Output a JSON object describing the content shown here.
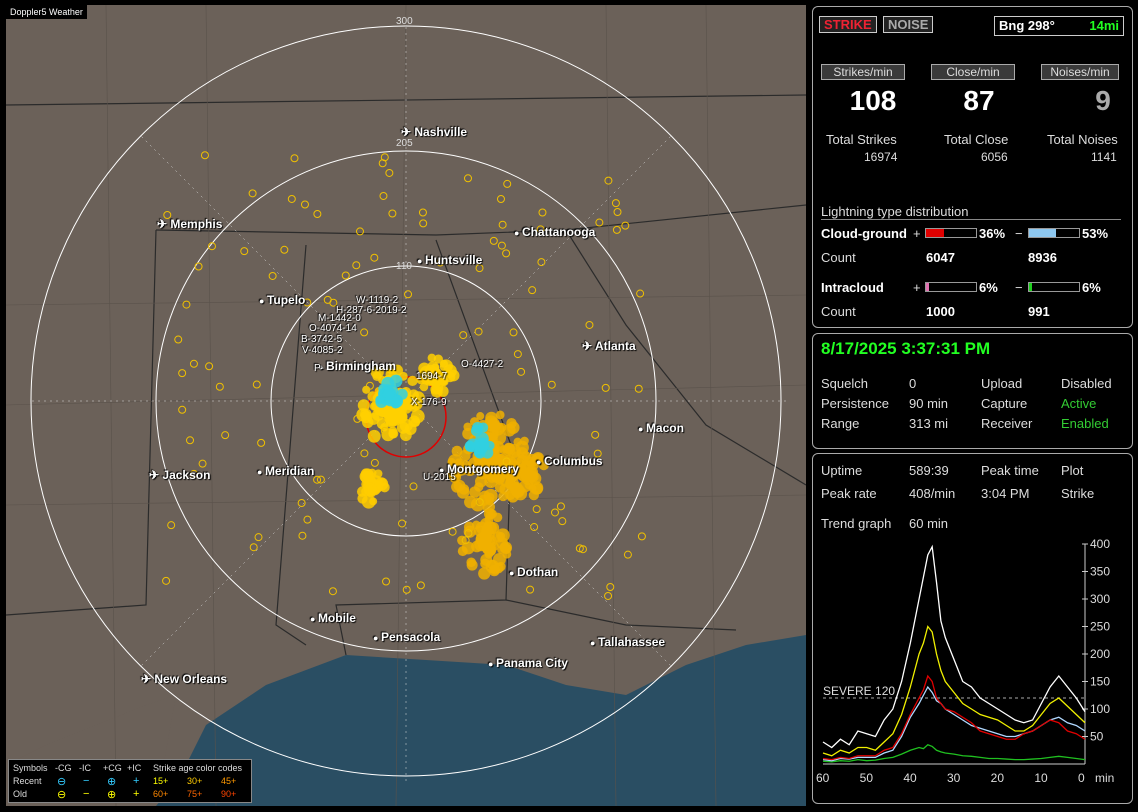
{
  "map": {
    "title": "Doppler5 Weather",
    "ring_labels": [
      "300",
      "205",
      "110"
    ],
    "cities": [
      {
        "name": "Nashville",
        "airport": true
      },
      {
        "name": "Memphis",
        "airport": true
      },
      {
        "name": "Chattanooga",
        "airport": false
      },
      {
        "name": "Huntsville",
        "airport": false
      },
      {
        "name": "Tupelo",
        "airport": false
      },
      {
        "name": "Atlanta",
        "airport": true
      },
      {
        "name": "Birmingham",
        "airport": false
      },
      {
        "name": "Macon",
        "airport": false
      },
      {
        "name": "Jackson",
        "airport": true
      },
      {
        "name": "Meridian",
        "airport": false
      },
      {
        "name": "Montgomery",
        "airport": false
      },
      {
        "name": "Columbus",
        "airport": false
      },
      {
        "name": "Dothan",
        "airport": false
      },
      {
        "name": "Mobile",
        "airport": false
      },
      {
        "name": "Pensacola",
        "airport": false
      },
      {
        "name": "Tallahassee",
        "airport": false
      },
      {
        "name": "Panama City",
        "airport": false
      },
      {
        "name": "New Orleans",
        "airport": true
      }
    ],
    "storm_labels": [
      "W-1119-2",
      "H-287-6-2019-2",
      "M-1442-0",
      "O-4074-14",
      "B-3742-5",
      "V-4085-2",
      "P-",
      "O-4427-2",
      "1694-7",
      "X-176-9",
      "U-2015"
    ],
    "legend": {
      "symbols_label": "Symbols",
      "recent_label": "Recent",
      "old_label": "Old",
      "cols": [
        "-CG",
        "-IC",
        "+CG",
        "+IC"
      ],
      "recent_symbols": [
        "⊖",
        "−",
        "⊕",
        "+"
      ],
      "old_symbols": [
        "⊖",
        "−",
        "⊕",
        "+"
      ],
      "age_title": "Strike age color codes",
      "recent_ages": [
        "15+",
        "30+",
        "45+"
      ],
      "old_ages": [
        "60+",
        "75+",
        "90+"
      ]
    }
  },
  "top": {
    "strike_btn": "STRIKE",
    "noise_btn": "NOISE",
    "bearing": "Bng 298°",
    "distance": "14mi",
    "strikes_min_label": "Strikes/min",
    "close_min_label": "Close/min",
    "noises_min_label": "Noises/min",
    "strikes_min": "108",
    "close_min": "87",
    "noises_min": "9",
    "total_strikes_label": "Total Strikes",
    "total_close_label": "Total Close",
    "total_noises_label": "Total Noises",
    "total_strikes": "16974",
    "total_close": "6056",
    "total_noises": "1141",
    "dist_title": "Lightning type distribution",
    "cg_label": "Cloud-ground",
    "ic_label": "Intracloud",
    "count_label": "Count",
    "plus": "+",
    "minus": "−",
    "cg_pos_pct": "36%",
    "cg_neg_pct": "53%",
    "cg_pos_count": "6047",
    "cg_neg_count": "8936",
    "ic_pos_pct": "6%",
    "ic_neg_pct": "6%",
    "ic_pos_count": "1000",
    "ic_neg_count": "991",
    "bar_fractions": {
      "cg_pos": 0.36,
      "cg_neg": 0.53,
      "ic_pos": 0.06,
      "ic_neg": 0.06
    },
    "colors": {
      "cg_pos": "#e00000",
      "cg_neg": "#8ec8f0",
      "ic_pos": "#e070b0",
      "ic_neg": "#20d020"
    }
  },
  "mid": {
    "datetime": "8/17/2025 3:37:31 PM",
    "squelch_label": "Squelch",
    "squelch": "0",
    "persistence_label": "Persistence",
    "persistence": "90 min",
    "range_label": "Range",
    "range": "313 mi",
    "upload_label": "Upload",
    "upload": "Disabled",
    "capture_label": "Capture",
    "capture": "Active",
    "receiver_label": "Receiver",
    "receiver": "Enabled"
  },
  "bottom": {
    "uptime_label": "Uptime",
    "uptime": "589:39",
    "peak_time_label": "Peak time",
    "peak_time": "3:04 PM",
    "plot_label": "Plot",
    "plot": "Strike",
    "peak_rate_label": "Peak rate",
    "peak_rate": "408/min",
    "trend_label": "Trend graph",
    "trend": "60 min",
    "severe_label": "SEVERE 120"
  },
  "chart_data": {
    "type": "line",
    "xlabel": "min",
    "x_ticks": [
      60,
      50,
      40,
      30,
      20,
      10,
      0
    ],
    "y_ticks": [
      50,
      100,
      150,
      200,
      250,
      300,
      350,
      400
    ],
    "ylim": [
      0,
      400
    ],
    "xlim": [
      60,
      0
    ],
    "threshold": 120,
    "x": [
      60,
      58,
      56,
      54,
      52,
      50,
      48,
      46,
      44,
      42,
      40,
      38,
      37,
      36,
      35,
      34,
      33,
      32,
      30,
      28,
      26,
      24,
      22,
      20,
      18,
      16,
      14,
      12,
      10,
      8,
      6,
      4,
      2,
      0
    ],
    "series": [
      {
        "color": "#ffffff",
        "values": [
          40,
          30,
          45,
          35,
          60,
          55,
          50,
          80,
          100,
          150,
          220,
          300,
          340,
          380,
          395,
          330,
          260,
          230,
          190,
          150,
          140,
          120,
          110,
          100,
          90,
          80,
          75,
          80,
          110,
          140,
          160,
          140,
          120,
          95
        ]
      },
      {
        "color": "#f0f000",
        "values": [
          20,
          15,
          25,
          20,
          30,
          30,
          25,
          40,
          55,
          90,
          140,
          200,
          220,
          250,
          240,
          200,
          170,
          150,
          130,
          110,
          100,
          90,
          85,
          80,
          70,
          60,
          60,
          70,
          90,
          110,
          120,
          105,
          90,
          75
        ]
      },
      {
        "color": "#e00000",
        "values": [
          10,
          8,
          12,
          10,
          15,
          15,
          15,
          25,
          30,
          55,
          90,
          120,
          135,
          160,
          150,
          120,
          110,
          100,
          95,
          85,
          75,
          60,
          55,
          50,
          45,
          45,
          55,
          60,
          70,
          80,
          75,
          60,
          55,
          45
        ]
      },
      {
        "color": "#b0d8ff",
        "values": [
          8,
          6,
          10,
          9,
          12,
          12,
          12,
          20,
          25,
          50,
          85,
          110,
          125,
          140,
          130,
          115,
          110,
          100,
          90,
          80,
          70,
          65,
          60,
          55,
          50,
          50,
          55,
          60,
          70,
          80,
          85,
          75,
          70,
          60
        ]
      },
      {
        "color": "#20c020",
        "values": [
          5,
          4,
          6,
          5,
          8,
          6,
          7,
          10,
          12,
          18,
          25,
          30,
          28,
          35,
          32,
          25,
          22,
          20,
          18,
          15,
          14,
          12,
          10,
          10,
          9,
          8,
          8,
          9,
          10,
          12,
          14,
          12,
          10,
          8
        ]
      }
    ]
  }
}
